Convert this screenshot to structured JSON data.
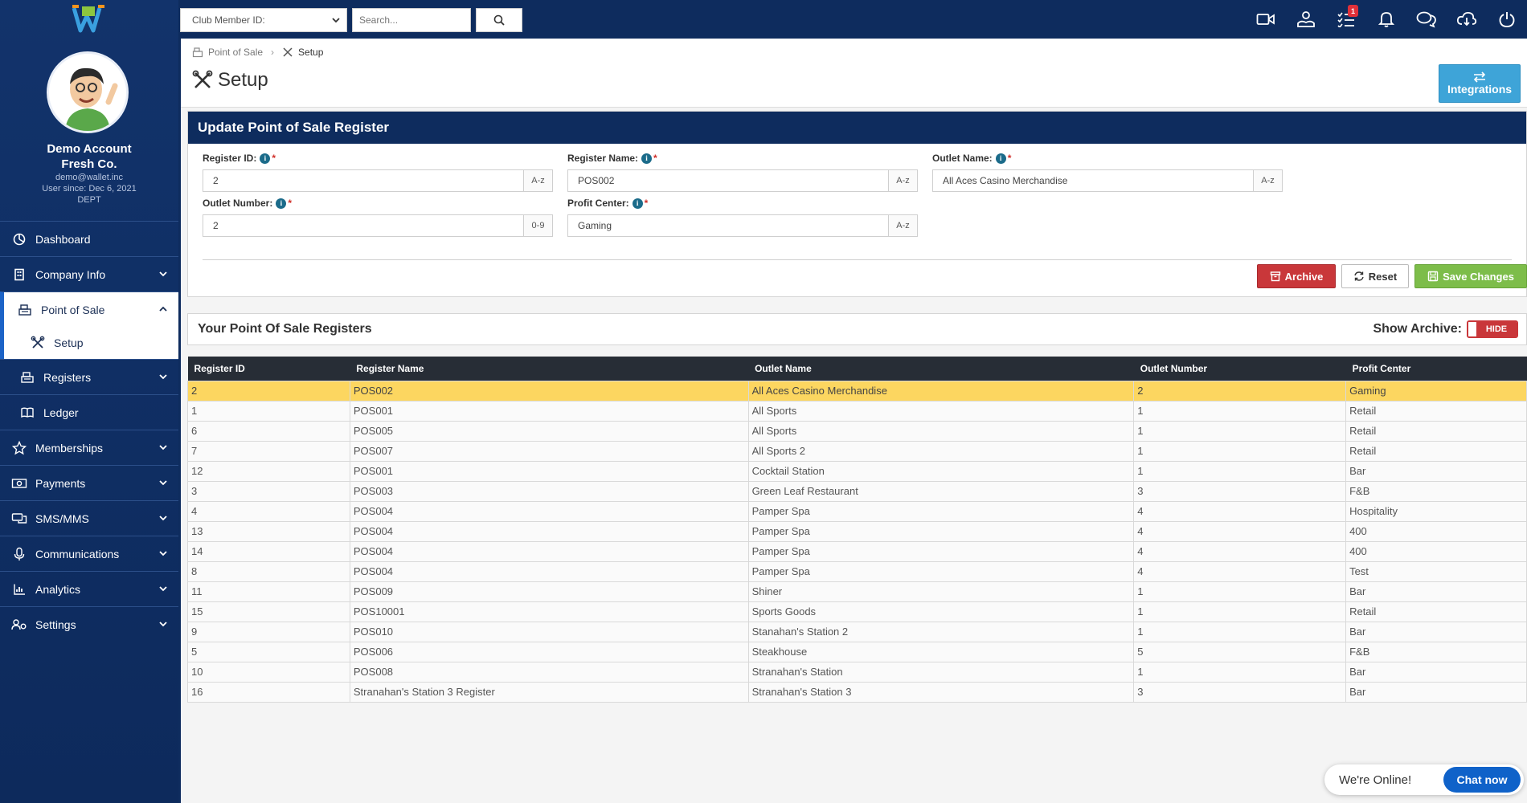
{
  "profile": {
    "name_line1": "Demo Account",
    "name_line2": "Fresh Co.",
    "email": "demo@wallet.inc",
    "since": "User since: Dec 6, 2021",
    "dept": "DEPT"
  },
  "sidebar": {
    "items": [
      {
        "label": "Dashboard",
        "icon": "dashboard-icon"
      },
      {
        "label": "Company Info",
        "icon": "building-icon"
      },
      {
        "label": "Point of Sale",
        "icon": "register-icon"
      },
      {
        "label": "Setup",
        "icon": "tools-icon"
      },
      {
        "label": "Registers",
        "icon": "register-icon"
      },
      {
        "label": "Ledger",
        "icon": "book-icon"
      },
      {
        "label": "Memberships",
        "icon": "star-icon"
      },
      {
        "label": "Payments",
        "icon": "money-icon"
      },
      {
        "label": "SMS/MMS",
        "icon": "chat-icon"
      },
      {
        "label": "Communications",
        "icon": "microphone-icon"
      },
      {
        "label": "Analytics",
        "icon": "chart-icon"
      },
      {
        "label": "Settings",
        "icon": "users-gear-icon"
      }
    ]
  },
  "topbar": {
    "member_select": "Club Member ID:",
    "search_placeholder": "Search...",
    "tasks_badge": "1"
  },
  "breadcrumb": {
    "parent": "Point of Sale",
    "current": "Setup"
  },
  "page": {
    "title": "Setup",
    "integrations_label": "Integrations"
  },
  "form": {
    "heading": "Update Point of Sale Register",
    "register_id": {
      "label": "Register ID:",
      "value": "2",
      "addon": "A-z"
    },
    "register_name": {
      "label": "Register Name:",
      "value": "POS002",
      "addon": "A-z"
    },
    "outlet_name": {
      "label": "Outlet Name:",
      "value": "All Aces Casino Merchandise",
      "addon": "A-z"
    },
    "outlet_number": {
      "label": "Outlet Number:",
      "value": "2",
      "addon": "0-9"
    },
    "profit_center": {
      "label": "Profit Center:",
      "value": "Gaming",
      "addon": "A-z"
    },
    "archive_label": "Archive",
    "reset_label": "Reset",
    "save_label": "Save Changes"
  },
  "list": {
    "title": "Your Point Of Sale Registers",
    "show_archive_label": "Show Archive:",
    "toggle_label": "HIDE"
  },
  "table": {
    "headers": [
      "Register ID",
      "Register Name",
      "Outlet Name",
      "Outlet Number",
      "Profit Center"
    ],
    "rows": [
      [
        "2",
        "POS002",
        "All Aces Casino Merchandise",
        "2",
        "Gaming"
      ],
      [
        "1",
        "POS001",
        "All Sports",
        "1",
        "Retail"
      ],
      [
        "6",
        "POS005",
        "All Sports",
        "1",
        "Retail"
      ],
      [
        "7",
        "POS007",
        "All Sports 2",
        "1",
        "Retail"
      ],
      [
        "12",
        "POS001",
        "Cocktail Station",
        "1",
        "Bar"
      ],
      [
        "3",
        "POS003",
        "Green Leaf Restaurant",
        "3",
        "F&B"
      ],
      [
        "4",
        "POS004",
        "Pamper Spa",
        "4",
        "Hospitality"
      ],
      [
        "13",
        "POS004",
        "Pamper Spa",
        "4",
        "400"
      ],
      [
        "14",
        "POS004",
        "Pamper Spa",
        "4",
        "400"
      ],
      [
        "8",
        "POS004",
        "Pamper Spa",
        "4",
        "Test"
      ],
      [
        "11",
        "POS009",
        "Shiner",
        "1",
        "Bar"
      ],
      [
        "15",
        "POS10001",
        "Sports Goods",
        "1",
        "Retail"
      ],
      [
        "9",
        "POS010",
        "Stanahan's Station 2",
        "1",
        "Bar"
      ],
      [
        "5",
        "POS006",
        "Steakhouse",
        "5",
        "F&B"
      ],
      [
        "10",
        "POS008",
        "Stranahan's Station",
        "1",
        "Bar"
      ],
      [
        "16",
        "Stranahan's Station 3 Register",
        "Stranahan's Station 3",
        "3",
        "Bar"
      ]
    ]
  },
  "chat": {
    "status": "We're Online!",
    "button": "Chat now"
  },
  "colors": {
    "sidebar": "#12336b",
    "topbar": "#0e2c5e",
    "highlight_row": "#fcd660",
    "archive": "#c9373a",
    "save": "#7dbd4a",
    "integrations": "#3ea4d8"
  }
}
